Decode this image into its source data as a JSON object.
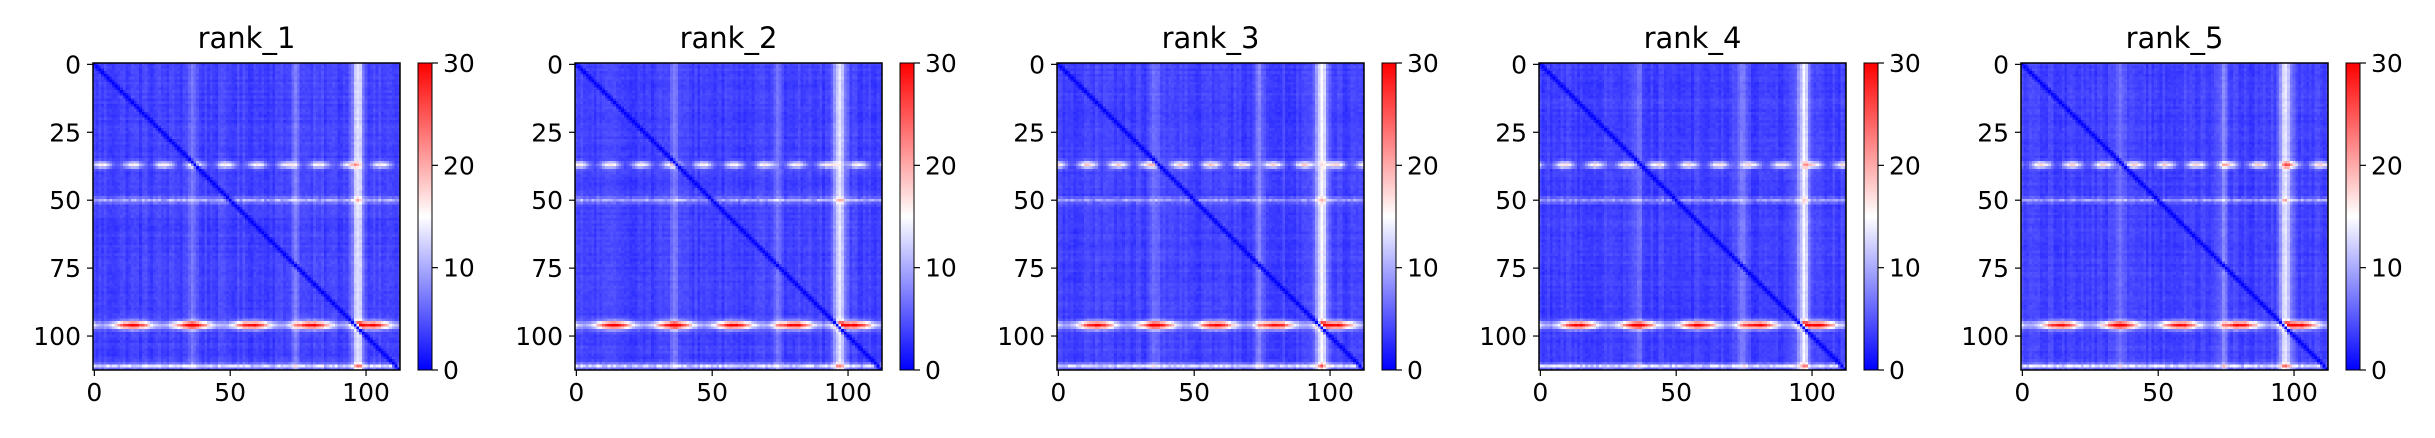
{
  "colormap": {
    "name": "bwr",
    "low": "#0000ff",
    "mid": "#ffffff",
    "high": "#ff0000"
  },
  "chart_data": [
    {
      "type": "heatmap",
      "title": "rank_1",
      "size": 113,
      "x_ticks": [
        0,
        50,
        100
      ],
      "y_ticks": [
        0,
        25,
        50,
        75,
        100
      ],
      "colorbar": {
        "min": 0,
        "max": 30,
        "ticks": [
          0,
          10,
          20,
          30
        ]
      },
      "bands": {
        "row_37": 12,
        "row_50": 8,
        "row_96": 26,
        "row_111": 11,
        "col_97": 10,
        "diagonal": 0
      }
    },
    {
      "type": "heatmap",
      "title": "rank_2",
      "size": 113,
      "x_ticks": [
        0,
        50,
        100
      ],
      "y_ticks": [
        0,
        25,
        50,
        75,
        100
      ],
      "colorbar": {
        "min": 0,
        "max": 30,
        "ticks": [
          0,
          10,
          20,
          30
        ]
      },
      "bands": {
        "row_37": 12,
        "row_50": 8,
        "row_96": 26,
        "row_111": 11,
        "col_97": 10,
        "diagonal": 0
      }
    },
    {
      "type": "heatmap",
      "title": "rank_3",
      "size": 113,
      "x_ticks": [
        0,
        50,
        100
      ],
      "y_ticks": [
        0,
        25,
        50,
        75,
        100
      ],
      "colorbar": {
        "min": 0,
        "max": 30,
        "ticks": [
          0,
          10,
          20,
          30
        ]
      },
      "bands": {
        "row_37": 14,
        "row_50": 7,
        "row_96": 26,
        "row_111": 11,
        "col_97": 11,
        "diagonal": 0
      }
    },
    {
      "type": "heatmap",
      "title": "rank_4",
      "size": 113,
      "x_ticks": [
        0,
        50,
        100
      ],
      "y_ticks": [
        0,
        25,
        50,
        75,
        100
      ],
      "colorbar": {
        "min": 0,
        "max": 30,
        "ticks": [
          0,
          10,
          20,
          30
        ]
      },
      "bands": {
        "row_37": 13,
        "row_50": 7,
        "row_96": 26,
        "row_111": 11,
        "col_97": 10,
        "diagonal": 0
      }
    },
    {
      "type": "heatmap",
      "title": "rank_5",
      "size": 113,
      "x_ticks": [
        0,
        50,
        100
      ],
      "y_ticks": [
        0,
        25,
        50,
        75,
        100
      ],
      "colorbar": {
        "min": 0,
        "max": 30,
        "ticks": [
          0,
          10,
          20,
          30
        ]
      },
      "bands": {
        "row_37": 14,
        "row_50": 7,
        "row_96": 26,
        "row_111": 11,
        "col_97": 10,
        "diagonal": 0
      }
    }
  ]
}
